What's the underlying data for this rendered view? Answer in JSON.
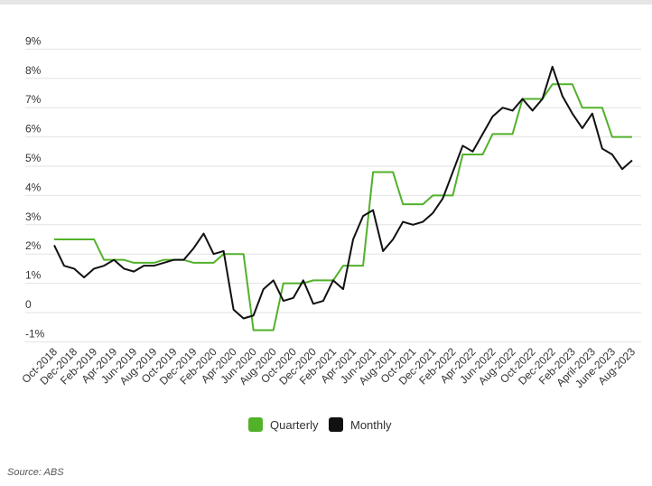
{
  "chart_data": {
    "type": "line",
    "categories": [
      "Oct-2018",
      null,
      "Dec-2018",
      null,
      "Feb-2019",
      null,
      "Apr-2019",
      null,
      "Jun-2019",
      null,
      "Aug-2019",
      null,
      "Oct-2019",
      null,
      "Dec-2019",
      null,
      "Feb-2020",
      null,
      "Apr-2020",
      null,
      "Jun-2020",
      null,
      "Aug-2020",
      null,
      "Oct-2020",
      null,
      "Dec-2020",
      null,
      "Feb-2021",
      null,
      "Apr-2021",
      null,
      "Jun-2021",
      null,
      "Aug-2021",
      null,
      "Oct-2021",
      null,
      "Dec-2021",
      null,
      "Feb-2022",
      null,
      "Apr-2022",
      null,
      "Jun-2022",
      null,
      "Aug-2022",
      null,
      "Oct-2022",
      null,
      "Dec-2022",
      null,
      "Feb-2023",
      null,
      "April-2023",
      null,
      "June-2023",
      null,
      "Aug-2023"
    ],
    "series": [
      {
        "name": "Quarterly",
        "color": "#52b12a",
        "values": [
          2.5,
          2.5,
          2.5,
          2.5,
          2.5,
          1.8,
          1.8,
          1.8,
          1.7,
          1.7,
          1.7,
          1.8,
          1.8,
          1.8,
          1.7,
          1.7,
          1.7,
          2.0,
          2.0,
          2.0,
          -0.6,
          -0.6,
          -0.6,
          1.0,
          1.0,
          1.0,
          1.1,
          1.1,
          1.1,
          1.6,
          1.6,
          1.6,
          4.8,
          4.8,
          4.8,
          3.7,
          3.7,
          3.7,
          4.0,
          4.0,
          4.0,
          5.4,
          5.4,
          5.4,
          6.1,
          6.1,
          6.1,
          7.3,
          7.3,
          7.3,
          7.8,
          7.8,
          7.8,
          7.0,
          7.0,
          7.0,
          6.0,
          6.0,
          6.0
        ]
      },
      {
        "name": "Monthly",
        "color": "#111111",
        "values": [
          2.3,
          1.6,
          1.5,
          1.2,
          1.5,
          1.6,
          1.8,
          1.5,
          1.4,
          1.6,
          1.6,
          1.7,
          1.8,
          1.8,
          2.2,
          2.7,
          2.0,
          2.1,
          0.1,
          -0.2,
          -0.1,
          0.8,
          1.1,
          0.4,
          0.5,
          1.1,
          0.3,
          0.4,
          1.1,
          0.8,
          2.5,
          3.3,
          3.5,
          2.1,
          2.5,
          3.1,
          3.0,
          3.1,
          3.4,
          3.9,
          4.8,
          5.7,
          5.5,
          6.1,
          6.7,
          7.0,
          6.9,
          7.3,
          6.9,
          7.3,
          8.4,
          7.4,
          6.8,
          6.3,
          6.8,
          5.6,
          5.4,
          4.9,
          5.2
        ]
      }
    ],
    "ylim": [
      -1,
      9
    ],
    "yticks": [
      {
        "value": -1,
        "label": "-1%"
      },
      0,
      {
        "value": 1,
        "label": "1%"
      },
      {
        "value": 2,
        "label": "2%"
      },
      {
        "value": 3,
        "label": "3%"
      },
      {
        "value": 4,
        "label": "4%"
      },
      {
        "value": 5,
        "label": "5%"
      },
      {
        "value": 6,
        "label": "6%"
      },
      {
        "value": 7,
        "label": "7%"
      },
      {
        "value": 8,
        "label": "8%"
      },
      {
        "value": 9,
        "label": "9%"
      }
    ],
    "grid": true,
    "source": "Source: ABS"
  }
}
